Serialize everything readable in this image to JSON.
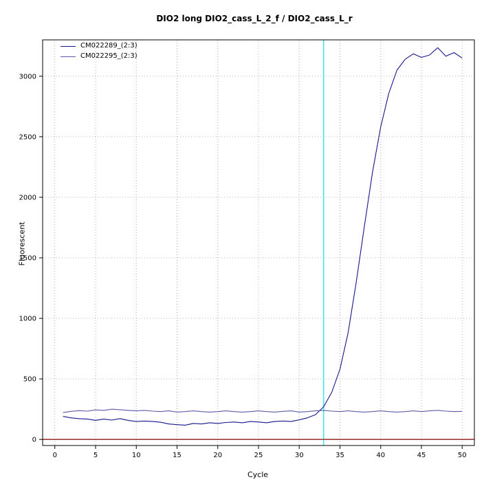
{
  "chart_data": {
    "type": "line",
    "title": "DIO2 long DIO2_cass_L_2_f / DIO2_cass_L_r",
    "xlabel": "Cycle",
    "ylabel": "Fluorescent",
    "xlim": [
      -1.5,
      51.5
    ],
    "ylim": [
      -50,
      3300
    ],
    "xticks": [
      0,
      5,
      10,
      15,
      20,
      25,
      30,
      35,
      40,
      45,
      50
    ],
    "yticks": [
      0,
      500,
      1000,
      1500,
      2000,
      2500,
      3000
    ],
    "grid": true,
    "grid_color": "#b0b0b0",
    "threshold_cycle": 33,
    "threshold_color": "#00e5ee",
    "baseline_value": 0,
    "baseline_color": "#a03939",
    "legend_position": "top-left",
    "x": [
      1,
      2,
      3,
      4,
      5,
      6,
      7,
      8,
      9,
      10,
      11,
      12,
      13,
      14,
      15,
      16,
      17,
      18,
      19,
      20,
      21,
      22,
      23,
      24,
      25,
      26,
      27,
      28,
      29,
      30,
      31,
      32,
      33,
      34,
      35,
      36,
      37,
      38,
      39,
      40,
      41,
      42,
      43,
      44,
      45,
      46,
      47,
      48,
      49,
      50
    ],
    "series": [
      {
        "name": "CM022289_(2:3)",
        "color": "#15158c",
        "values": [
          190,
          178,
          172,
          168,
          158,
          168,
          160,
          172,
          158,
          148,
          152,
          148,
          142,
          128,
          122,
          118,
          132,
          128,
          138,
          132,
          140,
          144,
          138,
          148,
          144,
          138,
          148,
          152,
          148,
          162,
          178,
          205,
          270,
          390,
          580,
          880,
          1300,
          1760,
          2210,
          2580,
          2860,
          3050,
          3140,
          3185,
          3155,
          3175,
          3235,
          3165,
          3195,
          3150
        ]
      },
      {
        "name": "CM022295_(2:3)",
        "color": "#5a5aa8",
        "values": [
          222,
          232,
          238,
          234,
          244,
          240,
          250,
          246,
          240,
          236,
          240,
          234,
          230,
          236,
          226,
          230,
          236,
          230,
          226,
          230,
          236,
          230,
          226,
          230,
          236,
          230,
          226,
          232,
          236,
          226,
          230,
          236,
          240,
          234,
          230,
          236,
          230,
          226,
          230,
          236,
          230,
          226,
          230,
          236,
          230,
          236,
          240,
          234,
          230,
          232
        ]
      }
    ]
  }
}
